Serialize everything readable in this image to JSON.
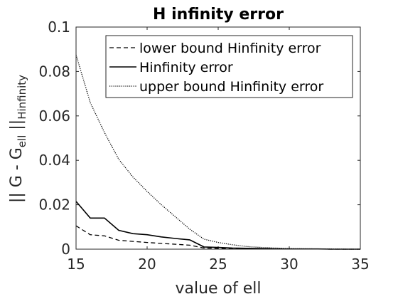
{
  "chart_data": {
    "type": "line",
    "title": "H infinity error",
    "xlabel": "value of ell",
    "ylabel": {
      "prefix": "|| G - G",
      "sub1": "ell",
      "middle": " ||",
      "sub2": "Hinfinity"
    },
    "xlim": [
      15,
      35
    ],
    "ylim": [
      0,
      0.1
    ],
    "xticks": [
      "15",
      "20",
      "25",
      "30",
      "35"
    ],
    "yticks": [
      "0",
      "0.02",
      "0.04",
      "0.06",
      "0.08",
      "0.1"
    ],
    "legend_position": "top-right",
    "grid": false,
    "x": [
      15,
      16,
      17,
      18,
      19,
      20,
      21,
      22,
      23,
      24,
      25,
      26,
      27,
      28,
      29,
      30,
      31,
      32,
      33,
      34,
      35
    ],
    "series": [
      {
        "name": "lower bound Hinfinity error",
        "style": "dashed",
        "values": [
          0.0105,
          0.0065,
          0.006,
          0.004,
          0.0035,
          0.003,
          0.0026,
          0.0022,
          0.0018,
          0.0005,
          0.0004,
          0.0003,
          0.0002,
          0.0001,
          0.0001,
          0.0001,
          0.0001,
          0.0001,
          0.0,
          0.0,
          0.0
        ]
      },
      {
        "name": "Hinfinity error",
        "style": "solid",
        "values": [
          0.0215,
          0.014,
          0.014,
          0.0085,
          0.007,
          0.0065,
          0.0055,
          0.0048,
          0.0042,
          0.001,
          0.0008,
          0.0005,
          0.0004,
          0.0003,
          0.0002,
          0.0001,
          0.0001,
          0.0001,
          0.0,
          0.0,
          0.0
        ]
      },
      {
        "name": "upper bound Hinfinity error",
        "style": "dotted",
        "values": [
          0.0875,
          0.066,
          0.0525,
          0.0405,
          0.0325,
          0.026,
          0.02,
          0.0145,
          0.009,
          0.0045,
          0.003,
          0.002,
          0.0012,
          0.0008,
          0.0005,
          0.0003,
          0.0002,
          0.0001,
          0.0001,
          0.0,
          0.0
        ]
      }
    ]
  }
}
